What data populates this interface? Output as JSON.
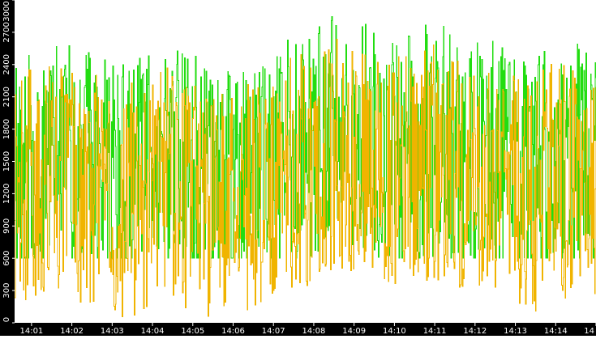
{
  "chart_data": {
    "type": "line",
    "title": "",
    "xlabel": "",
    "ylabel": "",
    "ylim": [
      0,
      3000
    ],
    "y_ticks": [
      0,
      300,
      600,
      900,
      1200,
      1500,
      1800,
      2100,
      2400,
      2700,
      3000
    ],
    "x_tick_labels": [
      "14:01",
      "14:02",
      "14:03",
      "14:04",
      "14:05",
      "14:06",
      "14:07",
      "14:08",
      "14:09",
      "14:10",
      "14:11",
      "14:12",
      "14:13",
      "14:14",
      "14"
    ],
    "x_range_minutes": [
      0.58,
      15.0
    ],
    "grid": false,
    "legend": "none",
    "background": "#ffffff",
    "axis_band_color": "#000000",
    "tick_label_color": "#ffffff",
    "series": [
      {
        "color": "#22dd11",
        "samples_per_minute": 60,
        "seed": 11,
        "segment_means": [
          [
            0.58,
            1450
          ],
          [
            1.0,
            1500
          ],
          [
            1.5,
            1600
          ],
          [
            2.0,
            1550
          ],
          [
            2.5,
            1500
          ],
          [
            3.0,
            1350
          ],
          [
            3.5,
            1400
          ],
          [
            4.0,
            1500
          ],
          [
            4.5,
            1550
          ],
          [
            5.0,
            1450
          ],
          [
            5.5,
            1350
          ],
          [
            6.0,
            1300
          ],
          [
            6.5,
            1400
          ],
          [
            7.0,
            1500
          ],
          [
            7.5,
            1650
          ],
          [
            8.0,
            1700
          ],
          [
            8.5,
            1850
          ],
          [
            9.0,
            1800
          ],
          [
            9.5,
            1700
          ],
          [
            10.0,
            1650
          ],
          [
            10.5,
            1700
          ],
          [
            11.0,
            1750
          ],
          [
            11.5,
            1650
          ],
          [
            12.0,
            1550
          ],
          [
            12.5,
            1600
          ],
          [
            13.0,
            1500
          ],
          [
            13.5,
            1450
          ],
          [
            14.0,
            1600
          ],
          [
            14.5,
            1550
          ],
          [
            15.0,
            1450
          ]
        ],
        "min": 600,
        "max": 3000
      },
      {
        "color": "#f0b400",
        "samples_per_minute": 60,
        "seed": 29,
        "segment_means": [
          [
            0.58,
            1300
          ],
          [
            1.0,
            1350
          ],
          [
            1.5,
            1450
          ],
          [
            2.0,
            1350
          ],
          [
            2.5,
            1300
          ],
          [
            3.0,
            1150
          ],
          [
            3.5,
            1200
          ],
          [
            4.0,
            1300
          ],
          [
            4.5,
            1350
          ],
          [
            5.0,
            1250
          ],
          [
            5.5,
            1150
          ],
          [
            6.0,
            1100
          ],
          [
            6.5,
            1200
          ],
          [
            7.0,
            1300
          ],
          [
            7.5,
            1450
          ],
          [
            8.0,
            1500
          ],
          [
            8.5,
            1600
          ],
          [
            9.0,
            1550
          ],
          [
            9.5,
            1500
          ],
          [
            10.0,
            1450
          ],
          [
            10.5,
            1500
          ],
          [
            11.0,
            1550
          ],
          [
            11.5,
            1450
          ],
          [
            12.0,
            1350
          ],
          [
            12.5,
            1400
          ],
          [
            13.0,
            1300
          ],
          [
            13.5,
            1250
          ],
          [
            14.0,
            1400
          ],
          [
            14.5,
            1350
          ],
          [
            15.0,
            1250
          ]
        ],
        "min": 0,
        "max": 2700
      }
    ]
  }
}
